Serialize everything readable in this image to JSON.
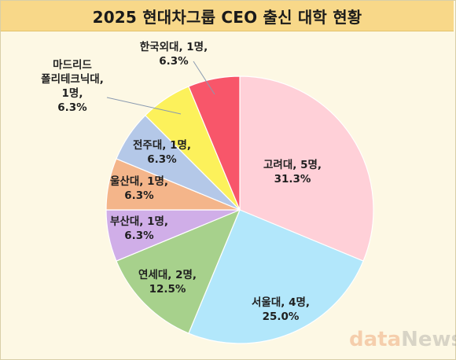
{
  "title": "2025 현대차그룹 CEO 출신 대학 현황",
  "source": {
    "part1": "data",
    "part2": "News"
  },
  "chart_data": {
    "type": "pie",
    "title": "2025 현대차그룹 CEO 출신 대학 현황",
    "slices": [
      {
        "name": "고려대",
        "count": 5,
        "percent": 31.3,
        "color": "#ffd0d8",
        "label": [
          "고려대, 5명,",
          "31.3%"
        ]
      },
      {
        "name": "서울대",
        "count": 4,
        "percent": 25.0,
        "color": "#b2e7fb",
        "label": [
          "서울대, 4명,",
          "25.0%"
        ]
      },
      {
        "name": "연세대",
        "count": 2,
        "percent": 12.5,
        "color": "#a7d18c",
        "label": [
          "연세대, 2명,",
          "12.5%"
        ]
      },
      {
        "name": "부산대",
        "count": 1,
        "percent": 6.3,
        "color": "#d0aee8",
        "label": [
          "부산대, 1명,",
          "6.3%"
        ]
      },
      {
        "name": "울산대",
        "count": 1,
        "percent": 6.3,
        "color": "#f4b58a",
        "label": [
          "울산대, 1명,",
          "6.3%"
        ]
      },
      {
        "name": "전주대",
        "count": 1,
        "percent": 6.3,
        "color": "#b4c8e8",
        "label": [
          "전주대, 1명,",
          "6.3%"
        ]
      },
      {
        "name": "마드리드 폴리테크닉대",
        "count": 1,
        "percent": 6.3,
        "color": "#fcf15b",
        "label": [
          "마드리드",
          "폴리테크닉대,",
          "1명,",
          "6.3%"
        ]
      },
      {
        "name": "한국외대",
        "count": 1,
        "percent": 6.3,
        "color": "#f8566a",
        "label": [
          "한국외대, 1명,",
          "6.3%"
        ]
      }
    ]
  }
}
